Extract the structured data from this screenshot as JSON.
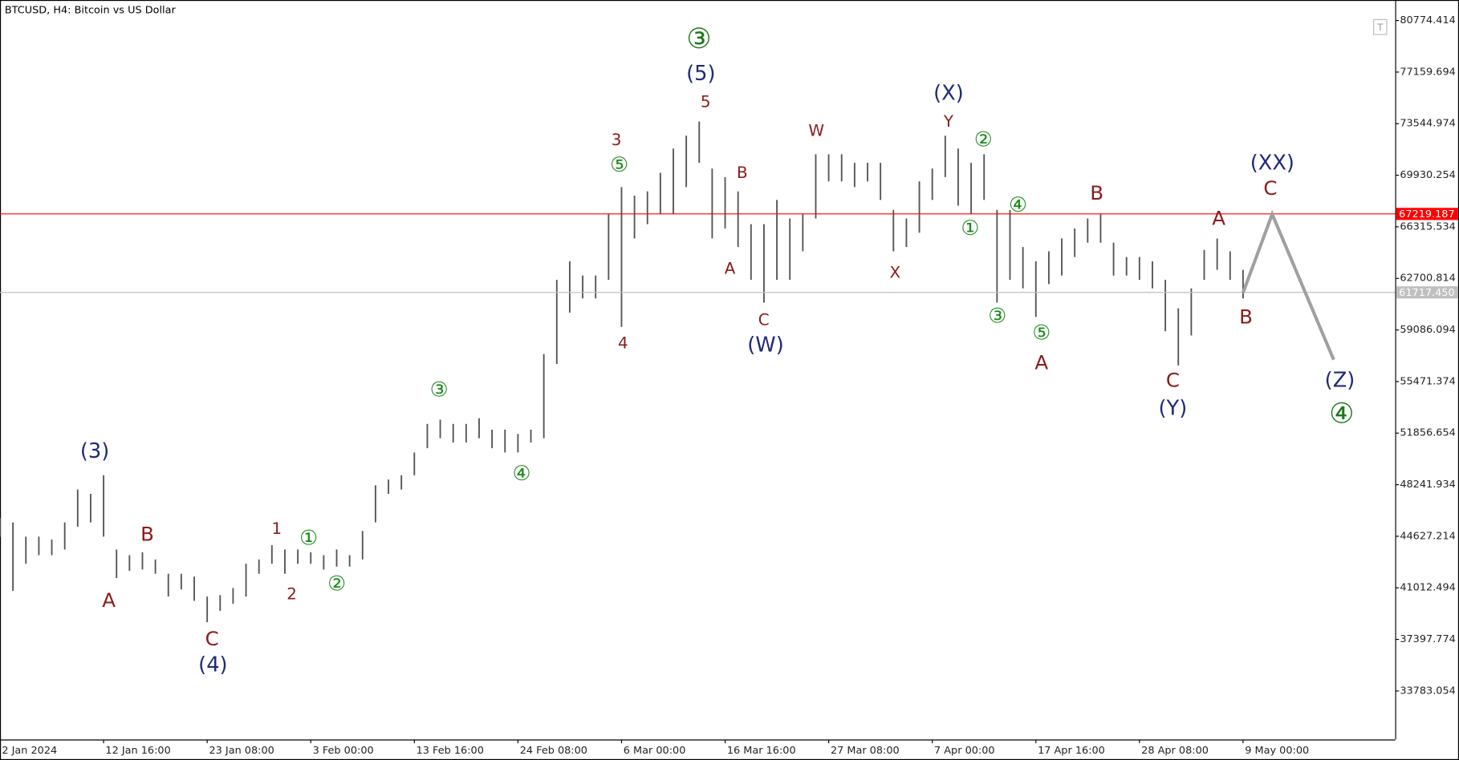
{
  "chart_data": {
    "type": "hlbar",
    "title": "BTCUSD, H4:  Bitcoin vs US Dollar",
    "bar_color": "#555555",
    "x": [
      0,
      8,
      16,
      24,
      32,
      40,
      48,
      56,
      64,
      72,
      80,
      88,
      96,
      104,
      112,
      120,
      128,
      136,
      144,
      152,
      160,
      168,
      176,
      184,
      192,
      200,
      208,
      216,
      224,
      232,
      240,
      248,
      256,
      264,
      272,
      280,
      288,
      296,
      304,
      312,
      320,
      328,
      336,
      344,
      352,
      360,
      368,
      376,
      384,
      392,
      400,
      408,
      416,
      424,
      432,
      440,
      448,
      456,
      464,
      472,
      480,
      488,
      496,
      504,
      512,
      520,
      528,
      536,
      544,
      552,
      560,
      568,
      576,
      584,
      592,
      600,
      608,
      616,
      624,
      632,
      640,
      648,
      656,
      664,
      672,
      680,
      688,
      696,
      704,
      712,
      720,
      728,
      736,
      744,
      752,
      760,
      768
    ],
    "high": [
      45900,
      45600,
      44600,
      44600,
      44400,
      45600,
      47900,
      47600,
      48900,
      43700,
      43300,
      43500,
      43000,
      42000,
      42000,
      41800,
      40400,
      40500,
      41000,
      42700,
      43000,
      44000,
      43700,
      43700,
      43500,
      43300,
      43700,
      43300,
      45000,
      48200,
      48600,
      48900,
      50500,
      52500,
      52800,
      52500,
      52500,
      52900,
      52100,
      52100,
      51800,
      52100,
      57400,
      62600,
      63900,
      62900,
      62900,
      67200,
      69100,
      68500,
      68800,
      70100,
      71800,
      72700,
      73700,
      70400,
      69800,
      68800,
      66500,
      66500,
      68200,
      66900,
      67200,
      71400,
      71400,
      71400,
      70800,
      70800,
      70800,
      67500,
      66900,
      69500,
      70400,
      72700,
      71800,
      70800,
      71400,
      67500,
      67500,
      64900,
      63900,
      64600,
      65500,
      66200,
      66900,
      67200,
      65200,
      64200,
      64200,
      63900,
      62600,
      60600,
      62000,
      64700,
      65500,
      64600,
      63300
    ],
    "low": [
      44600,
      40800,
      42700,
      43300,
      43300,
      43700,
      45300,
      45600,
      44600,
      41700,
      42200,
      42300,
      42000,
      40400,
      40900,
      40100,
      38600,
      39400,
      39900,
      40400,
      42000,
      42700,
      42000,
      42700,
      42700,
      42300,
      42500,
      42500,
      43000,
      45600,
      47600,
      47900,
      48900,
      50800,
      51500,
      51200,
      51200,
      51500,
      50800,
      50500,
      50500,
      51200,
      51500,
      56700,
      60300,
      61300,
      61300,
      62600,
      59300,
      65500,
      66500,
      67200,
      67200,
      69100,
      70800,
      65500,
      66200,
      64900,
      62600,
      61000,
      62600,
      62600,
      64600,
      66900,
      69500,
      69500,
      69100,
      69500,
      68200,
      64600,
      64900,
      65900,
      68200,
      69800,
      67800,
      67200,
      68200,
      61000,
      62600,
      62000,
      60000,
      62300,
      62900,
      64200,
      65200,
      65200,
      62900,
      62900,
      62600,
      62000,
      59000,
      56600,
      58700,
      62600,
      63300,
      62600,
      61300
    ],
    "forecast": {
      "color": "#a0a0a0",
      "x": [
        768,
        786,
        824
      ],
      "values": [
        61700,
        67200,
        57000
      ]
    },
    "xlim": [
      0,
      862
    ],
    "ylim": [
      30384,
      82212
    ],
    "yticks": [
      80774.414,
      77159.694,
      73544.974,
      69930.254,
      66315.534,
      62700.814,
      59086.094,
      55471.374,
      51856.654,
      48241.934,
      44627.214,
      41012.494,
      37397.774,
      33783.054
    ],
    "xticks": [
      {
        "value": 0,
        "label": "2 Jan 2024"
      },
      {
        "value": 64,
        "label": "12 Jan 16:00"
      },
      {
        "value": 128,
        "label": "23 Jan 08:00"
      },
      {
        "value": 192,
        "label": "3 Feb 00:00"
      },
      {
        "value": 256,
        "label": "13 Feb 16:00"
      },
      {
        "value": 320,
        "label": "24 Feb 08:00"
      },
      {
        "value": 384,
        "label": "6 Mar 00:00"
      },
      {
        "value": 448,
        "label": "16 Mar 16:00"
      },
      {
        "value": 512,
        "label": "27 Mar 08:00"
      },
      {
        "value": 576,
        "label": "7 Apr 00:00"
      },
      {
        "value": 640,
        "label": "17 Apr 16:00"
      },
      {
        "value": 704,
        "label": "28 Apr 08:00"
      },
      {
        "value": 768,
        "label": "9 May 00:00"
      }
    ],
    "price_lines": [
      {
        "value": 67219.187,
        "color": "#ff0000"
      },
      {
        "value": 61717.45,
        "label": "61717.450",
        "color": "#c0c0c0"
      }
    ],
    "annotations": [
      {
        "text": "(3)",
        "color": "#1f2a78"
      },
      {
        "text": "(4)",
        "color": "#1f2a78"
      },
      {
        "text": "(5)",
        "color": "#1f2a78"
      },
      {
        "text": "(W)",
        "color": "#1f2a78"
      },
      {
        "text": "(X)",
        "color": "#1f2a78"
      },
      {
        "text": "(Y)",
        "color": "#1f2a78"
      },
      {
        "text": "(XX)",
        "color": "#1f2a78"
      },
      {
        "text": "(Z)",
        "color": "#1f2a78"
      },
      {
        "text": "A",
        "color": "#8b1a1a"
      },
      {
        "text": "B",
        "color": "#8b1a1a"
      },
      {
        "text": "C",
        "color": "#8b1a1a"
      },
      {
        "text": "B",
        "color": "#8b1a1a"
      },
      {
        "text": "A",
        "color": "#8b1a1a"
      },
      {
        "text": "C",
        "color": "#8b1a1a"
      },
      {
        "text": "A",
        "color": "#8b1a1a"
      },
      {
        "text": "C",
        "color": "#8b1a1a"
      },
      {
        "text": "B",
        "color": "#8b1a1a"
      },
      {
        "text": "1",
        "color": "#8b1a1a"
      },
      {
        "text": "2",
        "color": "#8b1a1a"
      },
      {
        "text": "3",
        "color": "#8b1a1a"
      },
      {
        "text": "5",
        "color": "#8b1a1a"
      },
      {
        "text": "4",
        "color": "#8b1a1a"
      },
      {
        "text": "B",
        "color": "#8b1a1a"
      },
      {
        "text": "A",
        "color": "#8b1a1a"
      },
      {
        "text": "C",
        "color": "#8b1a1a"
      },
      {
        "text": "W",
        "color": "#8b1a1a"
      },
      {
        "text": "X",
        "color": "#8b1a1a"
      },
      {
        "text": "Y",
        "color": "#8b1a1a"
      },
      {
        "text": "①",
        "color": "#1a8a1a"
      },
      {
        "text": "②",
        "color": "#1a8a1a"
      },
      {
        "text": "③",
        "color": "#1a8a1a"
      },
      {
        "text": "④",
        "color": "#1a8a1a"
      },
      {
        "text": "⑤",
        "color": "#1a8a1a"
      },
      {
        "text": "②",
        "color": "#1a8a1a"
      },
      {
        "text": "①",
        "color": "#1a8a1a"
      },
      {
        "text": "④",
        "color": "#1a8a1a"
      },
      {
        "text": "③",
        "color": "#1a8a1a"
      },
      {
        "text": "⑤",
        "color": "#1a8a1a"
      },
      {
        "text": "③",
        "color": "#1a7a1a"
      },
      {
        "text": "④",
        "color": "#1a7a1a"
      }
    ]
  }
}
